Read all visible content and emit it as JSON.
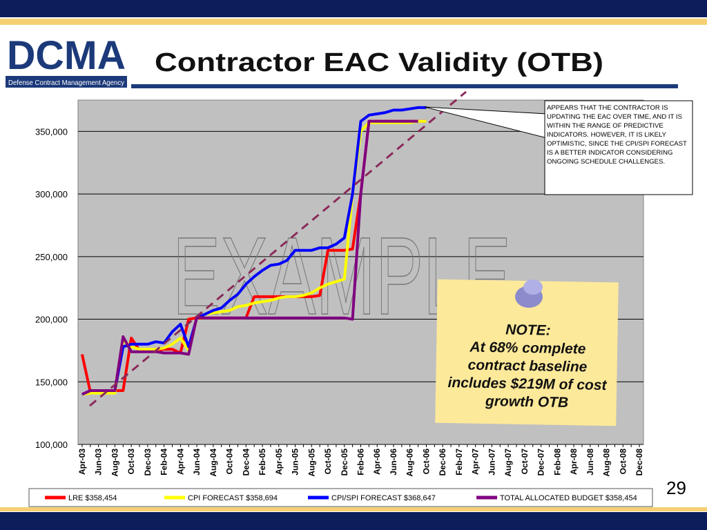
{
  "header": {
    "logo": "DCMA",
    "agency": "Defense Contract Management Agency",
    "title": "Contractor EAC Validity (OTB)"
  },
  "chart_data": {
    "type": "line",
    "categories": [
      "Apr-03",
      null,
      "Jun-03",
      null,
      "Aug-03",
      null,
      "Oct-03",
      null,
      "Dec-03",
      null,
      "Feb-04",
      null,
      "Apr-04",
      null,
      "Jun-04",
      null,
      "Aug-04",
      null,
      "Oct-04",
      null,
      "Dec-04",
      null,
      "Feb-05",
      null,
      "Apr-05",
      null,
      "Jun-05",
      null,
      "Aug-05",
      null,
      "Oct-05",
      null,
      "Dec-05",
      null,
      "Feb-06",
      null,
      "Apr-06",
      null,
      "Jun-06",
      null,
      "Aug-06",
      null,
      "Oct-06",
      null,
      "Dec-06",
      null,
      "Feb-07",
      null,
      "Apr-07",
      null,
      "Jun-07",
      null,
      "Aug-07",
      null,
      "Oct-07",
      null,
      "Dec-07",
      null,
      "Feb-08",
      null,
      "Apr-08",
      null,
      "Jun-08",
      null,
      "Aug-08",
      null,
      "Oct-08",
      null,
      "Dec-08"
    ],
    "series": [
      {
        "name": "LRE $358,454",
        "color": "#ff0000",
        "values": [
          172000,
          142000,
          142000,
          143000,
          143000,
          143000,
          185000,
          175000,
          175000,
          175000,
          176000,
          176000,
          173000,
          200000,
          201000,
          201000,
          201000,
          201000,
          201000,
          201000,
          201000,
          218000,
          218000,
          218000,
          218000,
          218000,
          218000,
          218000,
          218000,
          219000,
          255000,
          255000,
          255000,
          256000,
          300000,
          358000,
          358000,
          358000,
          358000,
          358000,
          358000,
          358000,
          358000,
          null,
          null,
          null,
          null,
          null,
          null,
          null,
          null,
          null,
          null,
          null,
          null,
          null,
          null,
          null,
          null,
          null,
          null,
          null,
          null,
          null,
          null,
          null,
          null,
          null,
          null
        ]
      },
      {
        "name": "CPI FORECAST $358,694",
        "color": "#ffff00",
        "values": [
          140000,
          141000,
          141000,
          141000,
          141000,
          183000,
          178000,
          176000,
          176000,
          176000,
          177000,
          180000,
          185000,
          175000,
          201000,
          204000,
          205000,
          206000,
          207000,
          210000,
          211000,
          213000,
          214000,
          215000,
          217000,
          218000,
          218000,
          219000,
          221000,
          225000,
          228000,
          230000,
          232000,
          300000,
          350000,
          357000,
          357000,
          357000,
          357000,
          357000,
          357000,
          358000,
          358000,
          null,
          null,
          null,
          null,
          null,
          null,
          null,
          null,
          null,
          null,
          null,
          null,
          null,
          null,
          null,
          null,
          null,
          null,
          null,
          null,
          null,
          null,
          null,
          null,
          null,
          null
        ]
      },
      {
        "name": "CPI/SPI FORECAST $368,647",
        "color": "#0000ff",
        "values": [
          140000,
          143000,
          143000,
          143000,
          143000,
          178000,
          180000,
          180000,
          180000,
          182000,
          181000,
          190000,
          196000,
          178000,
          201000,
          204000,
          207000,
          209000,
          215000,
          220000,
          228000,
          234000,
          239000,
          243000,
          244000,
          247000,
          255000,
          255000,
          255000,
          257000,
          257000,
          260000,
          265000,
          300000,
          358000,
          363000,
          364000,
          365000,
          367000,
          367000,
          368000,
          369000,
          369000,
          null,
          null,
          null,
          null,
          null,
          null,
          null,
          null,
          null,
          null,
          null,
          null,
          null,
          null,
          null,
          null,
          null,
          null,
          null,
          null,
          null,
          null,
          null,
          null,
          null,
          null
        ]
      },
      {
        "name": "TOTAL ALLOCATED BUDGET  $358,454",
        "color": "#800080",
        "values": [
          140000,
          143000,
          143000,
          143000,
          143000,
          186000,
          174000,
          174000,
          174000,
          174000,
          173000,
          173000,
          173000,
          172000,
          202000,
          201000,
          201000,
          201000,
          201000,
          201000,
          201000,
          201000,
          201000,
          201000,
          201000,
          201000,
          201000,
          201000,
          201000,
          201000,
          201000,
          201000,
          201000,
          200000,
          300000,
          358000,
          358000,
          358000,
          358000,
          358000,
          358000,
          358000,
          null,
          null,
          null,
          null,
          null,
          null,
          null,
          null,
          null,
          null,
          null,
          null,
          null,
          null,
          null,
          null,
          null,
          null,
          null,
          null,
          null,
          null,
          null,
          null,
          null,
          null,
          null
        ]
      }
    ],
    "ylim": [
      100000,
      375000
    ],
    "yticks": [
      {
        "value": 100000,
        "label": "100,000"
      },
      {
        "value": 150000,
        "label": "150,000"
      },
      {
        "value": 200000,
        "label": "200,000"
      },
      {
        "value": 250000,
        "label": "250,000"
      },
      {
        "value": 300000,
        "label": "300,000"
      },
      {
        "value": 350000,
        "label": "350,000"
      }
    ],
    "grid": true,
    "watermark": "EXAMPLE",
    "callout": "APPEARS THAT THE CONTRACTOR IS UPDATING THE EAC OVER TIME, AND IT IS WITHIN THE RANGE OF PREDICTIVE INDICATORS. HOWEVER, IT IS LIKELY OPTIMISTIC, SINCE THE CPI/SPI FORECAST IS A BETTER INDICATOR CONSIDERING ONGOING SCHEDULE CHALLENGES.",
    "note_title": "NOTE:",
    "note": "At 68% complete contract baseline includes $219M  of cost growth OTB"
  },
  "page_number": "29"
}
